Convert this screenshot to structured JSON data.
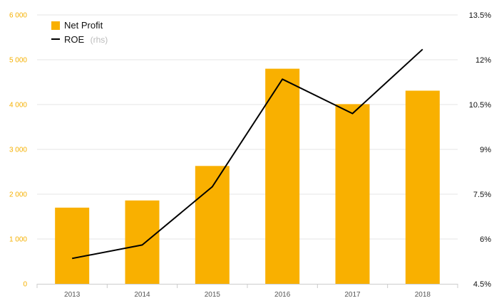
{
  "chart_data": {
    "type": "bar",
    "categories": [
      "2013",
      "2014",
      "2015",
      "2016",
      "2017",
      "2018"
    ],
    "series": [
      {
        "name": "Net Profit",
        "type": "bar",
        "axis": "left",
        "values": [
          1700,
          1860,
          2630,
          4800,
          4010,
          4310
        ]
      },
      {
        "name": "ROE",
        "name_suffix": "(rhs)",
        "type": "line",
        "axis": "right",
        "values": [
          5.35,
          5.8,
          7.75,
          11.35,
          10.2,
          12.35
        ]
      }
    ],
    "y_left": {
      "lim": [
        0,
        6000
      ],
      "ticks": [
        0,
        1000,
        2000,
        3000,
        4000,
        5000,
        6000
      ],
      "tick_labels": [
        "0",
        "1 000",
        "2 000",
        "3 000",
        "4 000",
        "5 000",
        "6 000"
      ]
    },
    "y_right": {
      "lim": [
        4.5,
        13.5
      ],
      "ticks": [
        4.5,
        6,
        7.5,
        9,
        10.5,
        12,
        13.5
      ],
      "tick_labels": [
        "4.5%",
        "6%",
        "7.5%",
        "9%",
        "10.5%",
        "12%",
        "13.5%"
      ]
    },
    "grid": true,
    "legend_position": "top-left",
    "colors": {
      "bar": "#f9b000",
      "line": "#000000",
      "grid": "#e6e6e6",
      "left_tick_text": "#f5b000",
      "right_tick_text": "#111111"
    }
  }
}
